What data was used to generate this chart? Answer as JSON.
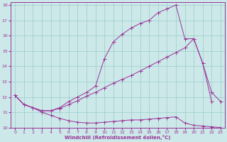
{
  "background_color": "#cce8e8",
  "grid_color": "#99cccc",
  "line_color": "#993399",
  "xlabel": "Windchill (Refroidissement éolien,°C)",
  "xlim": [
    -0.5,
    23.5
  ],
  "ylim": [
    10,
    18.2
  ],
  "yticks": [
    10,
    11,
    12,
    13,
    14,
    15,
    16,
    17,
    18
  ],
  "xticks": [
    0,
    1,
    2,
    3,
    4,
    5,
    6,
    7,
    8,
    9,
    10,
    11,
    12,
    13,
    14,
    15,
    16,
    17,
    18,
    19,
    20,
    21,
    22,
    23
  ],
  "line1_x": [
    0,
    1,
    2,
    3,
    4,
    5,
    6,
    7,
    8,
    9,
    10,
    11,
    12,
    13,
    14,
    15,
    16,
    17,
    18,
    19,
    20,
    21,
    22,
    23
  ],
  "line1_y": [
    12.1,
    11.5,
    11.3,
    11.0,
    10.8,
    10.6,
    10.45,
    10.35,
    10.3,
    10.3,
    10.35,
    10.4,
    10.45,
    10.5,
    10.5,
    10.55,
    10.6,
    10.65,
    10.7,
    10.3,
    10.15,
    10.1,
    10.05,
    10.0
  ],
  "line2_x": [
    0,
    1,
    2,
    3,
    4,
    5,
    6,
    7,
    8,
    9,
    10,
    11,
    12,
    13,
    14,
    15,
    16,
    17,
    18,
    19,
    20,
    21,
    22,
    23
  ],
  "line2_y": [
    12.1,
    11.5,
    11.3,
    11.1,
    11.1,
    11.25,
    11.5,
    11.75,
    12.05,
    12.3,
    12.6,
    12.9,
    13.15,
    13.4,
    13.7,
    14.0,
    14.3,
    14.6,
    14.9,
    15.2,
    15.8,
    14.2,
    12.3,
    11.7
  ],
  "line3_x": [
    0,
    1,
    2,
    3,
    4,
    5,
    6,
    7,
    8,
    9,
    10,
    11,
    12,
    13,
    14,
    15,
    16,
    17,
    18,
    19,
    20,
    21,
    22
  ],
  "line3_y": [
    12.1,
    11.5,
    11.3,
    11.1,
    11.1,
    11.3,
    11.7,
    12.0,
    12.3,
    12.7,
    14.5,
    15.6,
    16.1,
    16.5,
    16.8,
    17.0,
    17.5,
    17.75,
    18.0,
    15.8,
    15.8,
    14.2,
    11.7
  ]
}
